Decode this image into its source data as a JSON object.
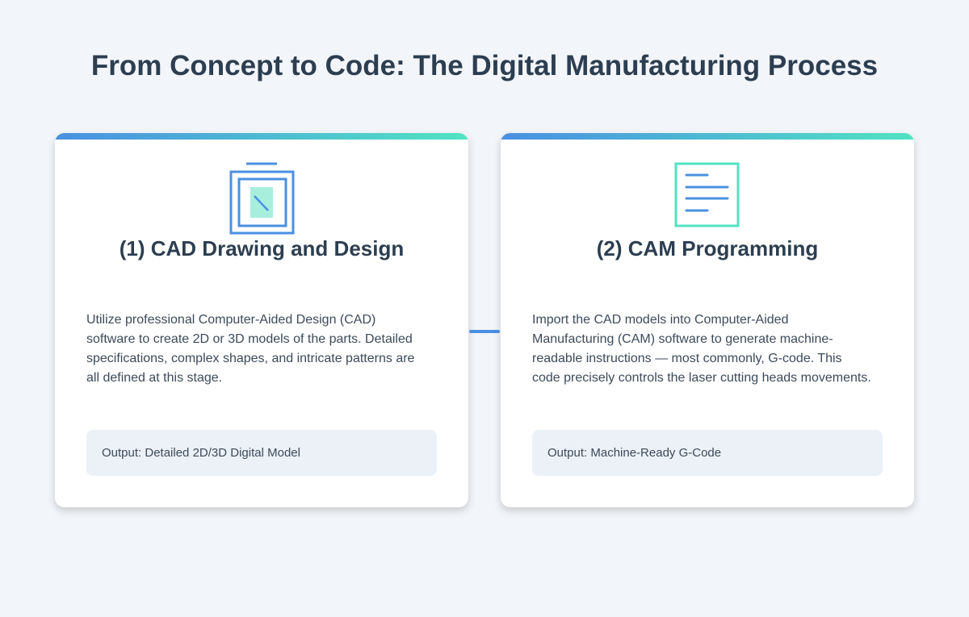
{
  "title": "From Concept to Code: The Digital Manufacturing Process",
  "colors": {
    "accent_blue": "#4a90e2",
    "accent_teal": "#50e3c2",
    "text": "#2c3e50"
  },
  "steps": [
    {
      "icon": "cad-drawing-icon",
      "title": "(1) CAD Drawing and Design",
      "description": "Utilize professional Computer-Aided Design (CAD) software to create 2D or 3D models of the parts. Detailed specifications, complex shapes, and intricate patterns are all defined at this stage.",
      "output": "Output: Detailed 2D/3D Digital Model"
    },
    {
      "icon": "code-document-icon",
      "title": "(2) CAM Programming",
      "description": "Import the CAD models into Computer-Aided Manufacturing (CAM) software to generate machine-readable instructions — most commonly, G-code. This code precisely controls the laser cutting heads movements.",
      "output": "Output: Machine-Ready G-Code"
    }
  ]
}
